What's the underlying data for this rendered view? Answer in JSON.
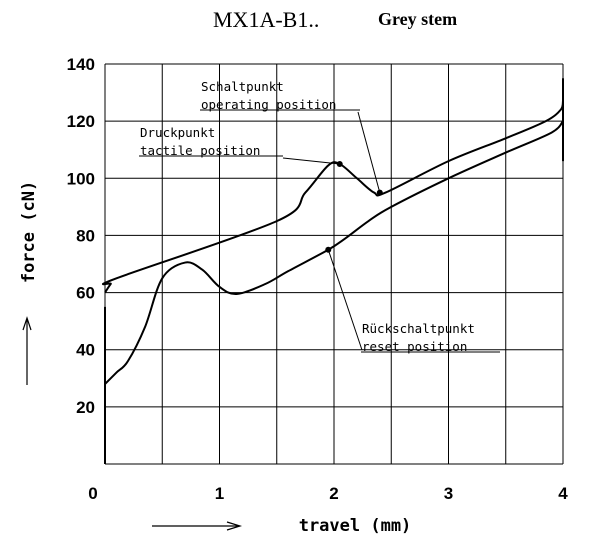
{
  "chart_data": {
    "type": "line",
    "title": "MX1A-B1..",
    "subtitle": "Grey stem",
    "xlabel": "travel (mm)",
    "ylabel": "force (cN)",
    "xlim": [
      0,
      4
    ],
    "ylim": [
      0,
      140
    ],
    "xticks": [
      0,
      1,
      2,
      3,
      4
    ],
    "yticks": [
      20,
      40,
      60,
      80,
      100,
      120,
      140
    ],
    "grid": true,
    "series": [
      {
        "points": [
          [
            0.0,
            60
          ],
          [
            0.05,
            63
          ],
          [
            0.1,
            65
          ],
          [
            1.5,
            85
          ],
          [
            1.75,
            95
          ],
          [
            1.95,
            104.5
          ],
          [
            2.05,
            105
          ],
          [
            2.2,
            100
          ],
          [
            2.35,
            95
          ],
          [
            2.45,
            95
          ],
          [
            3.0,
            106
          ],
          [
            3.5,
            114
          ],
          [
            3.85,
            120
          ],
          [
            3.98,
            124
          ],
          [
            4.0,
            127
          ]
        ]
      },
      {
        "points": [
          [
            0.0,
            28
          ],
          [
            0.1,
            32
          ],
          [
            0.2,
            36
          ],
          [
            0.35,
            48
          ],
          [
            0.5,
            65
          ],
          [
            0.7,
            70.5
          ],
          [
            0.85,
            68
          ],
          [
            1.0,
            62
          ],
          [
            1.15,
            59.5
          ],
          [
            1.4,
            63
          ],
          [
            1.6,
            67.5
          ],
          [
            1.95,
            75
          ],
          [
            2.1,
            79
          ],
          [
            2.3,
            85
          ],
          [
            2.5,
            90
          ],
          [
            3.0,
            100
          ],
          [
            3.5,
            109
          ],
          [
            3.9,
            116
          ],
          [
            4.0,
            120
          ]
        ]
      }
    ],
    "annotations": [
      {
        "lines": [
          "Schaltpunkt",
          "operating position"
        ],
        "x": 2.4,
        "y": 95
      },
      {
        "lines": [
          "Druckpunkt",
          "tactile position"
        ],
        "x": 2.05,
        "y": 105
      },
      {
        "lines": [
          "Rückschaltpunkt",
          "reset position"
        ],
        "x": 1.95,
        "y": 75
      }
    ]
  }
}
